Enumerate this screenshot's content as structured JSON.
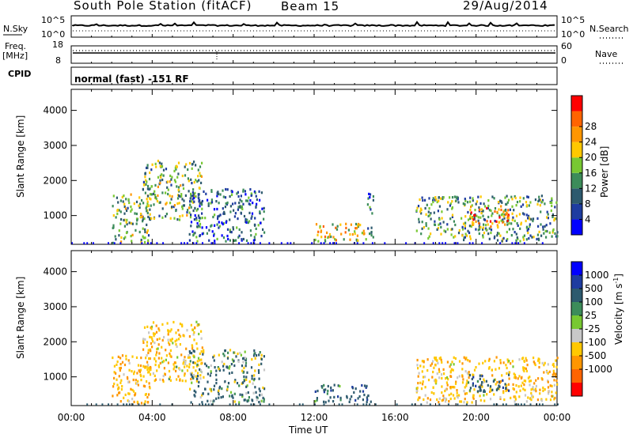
{
  "header": {
    "station": "South Pole Station (fitACF)",
    "beam": "Beam 15",
    "date": "29/Aug/2014"
  },
  "top_panels": {
    "nsky_label": "N.Sky",
    "nsky_ticks": [
      "10^5",
      "10^0"
    ],
    "nsearch_label": "N.Search",
    "nsearch_ticks": [
      "10^5",
      "10^0"
    ],
    "freq_label": "Freq.",
    "freq_unit": "[MHz]",
    "freq_ticks": [
      "18",
      "8"
    ],
    "nave_label": "Nave",
    "nave_ticks": [
      "60",
      "0"
    ],
    "cpid_label": "CPID",
    "cpid_text": "normal (fast) -151 RF"
  },
  "colors": {
    "power": [
      "#0000ff",
      "#1e3ca0",
      "#2d5a6e",
      "#3c8c5a",
      "#78c832",
      "#ffc800",
      "#ff9600",
      "#ff6400",
      "#ff0000"
    ],
    "velocity": [
      "#0000ff",
      "#1e3ca0",
      "#2d5a6e",
      "#3c8c5a",
      "#78c832",
      "#c8c8c8",
      "#ffc800",
      "#ff9600",
      "#ff6400",
      "#ff0000"
    ]
  },
  "chart_data": [
    {
      "type": "heatmap",
      "name": "power",
      "xlabel": "",
      "ylabel": "Slant Range [km]",
      "ylim": [
        180,
        4600
      ],
      "y_ticks": [
        1000,
        2000,
        3000,
        4000
      ],
      "colorbar": {
        "label": "Power [dB]",
        "range": [
          0,
          32
        ],
        "ticks": [
          "4",
          "8",
          "12",
          "16",
          "20",
          "24",
          "28"
        ]
      },
      "echo_regions": [
        {
          "t0": 2.0,
          "t1": 3.9,
          "r0": 250,
          "r1": 1650,
          "level": 16
        },
        {
          "t0": 3.5,
          "t1": 6.5,
          "r0": 900,
          "r1": 2600,
          "level": 16
        },
        {
          "t0": 5.8,
          "t1": 9.5,
          "r0": 300,
          "r1": 1800,
          "level": 10
        },
        {
          "t0": 12.0,
          "t1": 14.8,
          "r0": 300,
          "r1": 800,
          "level": 22
        },
        {
          "t0": 14.6,
          "t1": 14.9,
          "r0": 400,
          "r1": 1700,
          "level": 8
        },
        {
          "t0": 17.0,
          "t1": 24.0,
          "r0": 300,
          "r1": 1600,
          "level": 14
        },
        {
          "t0": 19.5,
          "t1": 21.6,
          "r0": 700,
          "r1": 1300,
          "level": 26
        }
      ]
    },
    {
      "type": "heatmap",
      "name": "velocity",
      "xlabel": "Time UT",
      "ylabel": "Slant Range [km]",
      "ylim": [
        180,
        4600
      ],
      "y_ticks": [
        1000,
        2000,
        3000,
        4000
      ],
      "x_ticks": [
        "00:00",
        "04:00",
        "08:00",
        "12:00",
        "16:00",
        "20:00",
        "00:00"
      ],
      "colorbar": {
        "label": "Velocity [m s^-1]",
        "ticks": [
          "1000",
          "500",
          "100",
          "25",
          "-25",
          "-100",
          "-500",
          "-1000"
        ]
      },
      "echo_regions": [
        {
          "t0": 2.0,
          "t1": 3.9,
          "r0": 250,
          "r1": 1650,
          "level": -400
        },
        {
          "t0": 3.5,
          "t1": 6.5,
          "r0": 900,
          "r1": 2600,
          "level": -300
        },
        {
          "t0": 5.8,
          "t1": 9.5,
          "r0": 300,
          "r1": 1800,
          "level": 150
        },
        {
          "t0": 12.0,
          "t1": 14.8,
          "r0": 300,
          "r1": 800,
          "level": 300
        },
        {
          "t0": 17.0,
          "t1": 24.0,
          "r0": 300,
          "r1": 1600,
          "level": -350
        },
        {
          "t0": 19.5,
          "t1": 21.6,
          "r0": 600,
          "r1": 1100,
          "level": 400
        }
      ]
    }
  ]
}
